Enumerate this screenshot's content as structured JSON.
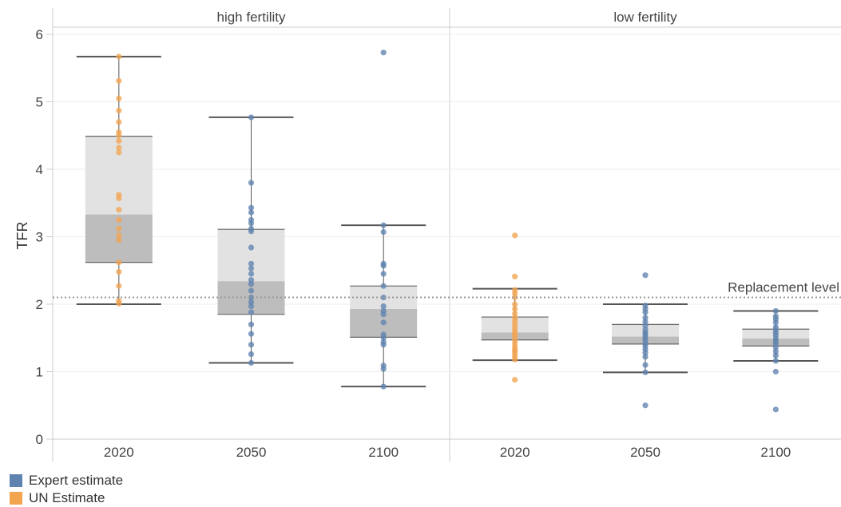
{
  "chart_data": {
    "type": "box",
    "ylabel": "TFR",
    "ylim": [
      0,
      6
    ],
    "yticks": [
      "0",
      "1",
      "2",
      "3",
      "4",
      "5",
      "6"
    ],
    "reference_line": {
      "value": 2.1,
      "label": "Replacement level"
    },
    "panels": [
      {
        "title": "high fertility",
        "boxes": [
          {
            "x": "2020",
            "whisker_low": 2.0,
            "q1": 2.62,
            "median": 3.33,
            "q3": 4.49,
            "whisker_high": 5.67,
            "points": [
              {
                "y": 5.67,
                "series": "UN Estimate"
              },
              {
                "y": 5.31,
                "series": "UN Estimate"
              },
              {
                "y": 5.05,
                "series": "UN Estimate"
              },
              {
                "y": 4.87,
                "series": "UN Estimate"
              },
              {
                "y": 4.7,
                "series": "UN Estimate"
              },
              {
                "y": 4.55,
                "series": "UN Estimate"
              },
              {
                "y": 4.5,
                "series": "UN Estimate"
              },
              {
                "y": 4.42,
                "series": "UN Estimate"
              },
              {
                "y": 4.32,
                "series": "UN Estimate"
              },
              {
                "y": 4.25,
                "series": "UN Estimate"
              },
              {
                "y": 3.62,
                "series": "UN Estimate"
              },
              {
                "y": 3.57,
                "series": "UN Estimate"
              },
              {
                "y": 3.4,
                "series": "UN Estimate"
              },
              {
                "y": 3.25,
                "series": "UN Estimate"
              },
              {
                "y": 3.12,
                "series": "UN Estimate"
              },
              {
                "y": 3.02,
                "series": "UN Estimate"
              },
              {
                "y": 2.95,
                "series": "UN Estimate"
              },
              {
                "y": 2.62,
                "series": "UN Estimate"
              },
              {
                "y": 2.48,
                "series": "UN Estimate"
              },
              {
                "y": 2.27,
                "series": "UN Estimate"
              },
              {
                "y": 2.05,
                "series": "UN Estimate"
              },
              {
                "y": 2.01,
                "series": "UN Estimate"
              }
            ]
          },
          {
            "x": "2050",
            "whisker_low": 1.13,
            "q1": 1.85,
            "median": 2.34,
            "q3": 3.11,
            "whisker_high": 4.77,
            "points": [
              {
                "y": 4.77,
                "series": "Expert estimate"
              },
              {
                "y": 3.8,
                "series": "Expert estimate"
              },
              {
                "y": 3.43,
                "series": "Expert estimate"
              },
              {
                "y": 3.36,
                "series": "Expert estimate"
              },
              {
                "y": 3.25,
                "series": "Expert estimate"
              },
              {
                "y": 3.2,
                "series": "Expert estimate"
              },
              {
                "y": 3.12,
                "series": "Expert estimate"
              },
              {
                "y": 3.08,
                "series": "Expert estimate"
              },
              {
                "y": 2.84,
                "series": "Expert estimate"
              },
              {
                "y": 2.6,
                "series": "Expert estimate"
              },
              {
                "y": 2.53,
                "series": "Expert estimate"
              },
              {
                "y": 2.45,
                "series": "Expert estimate"
              },
              {
                "y": 2.36,
                "series": "Expert estimate"
              },
              {
                "y": 2.3,
                "series": "Expert estimate"
              },
              {
                "y": 2.2,
                "series": "Expert estimate"
              },
              {
                "y": 2.1,
                "series": "Expert estimate"
              },
              {
                "y": 2.03,
                "series": "Expert estimate"
              },
              {
                "y": 1.97,
                "series": "Expert estimate"
              },
              {
                "y": 1.88,
                "series": "Expert estimate"
              },
              {
                "y": 1.7,
                "series": "Expert estimate"
              },
              {
                "y": 1.56,
                "series": "Expert estimate"
              },
              {
                "y": 1.4,
                "series": "Expert estimate"
              },
              {
                "y": 1.26,
                "series": "Expert estimate"
              },
              {
                "y": 1.13,
                "series": "Expert estimate"
              }
            ]
          },
          {
            "x": "2100",
            "whisker_low": 0.78,
            "q1": 1.51,
            "median": 1.93,
            "q3": 2.27,
            "whisker_high": 3.17,
            "points": [
              {
                "y": 5.73,
                "series": "Expert estimate"
              },
              {
                "y": 3.17,
                "series": "Expert estimate"
              },
              {
                "y": 3.07,
                "series": "Expert estimate"
              },
              {
                "y": 2.6,
                "series": "Expert estimate"
              },
              {
                "y": 2.57,
                "series": "Expert estimate"
              },
              {
                "y": 2.45,
                "series": "Expert estimate"
              },
              {
                "y": 2.27,
                "series": "Expert estimate"
              },
              {
                "y": 2.1,
                "series": "Expert estimate"
              },
              {
                "y": 1.97,
                "series": "Expert estimate"
              },
              {
                "y": 1.9,
                "series": "Expert estimate"
              },
              {
                "y": 1.85,
                "series": "Expert estimate"
              },
              {
                "y": 1.73,
                "series": "Expert estimate"
              },
              {
                "y": 1.55,
                "series": "Expert estimate"
              },
              {
                "y": 1.5,
                "series": "Expert estimate"
              },
              {
                "y": 1.44,
                "series": "Expert estimate"
              },
              {
                "y": 1.4,
                "series": "Expert estimate"
              },
              {
                "y": 1.09,
                "series": "Expert estimate"
              },
              {
                "y": 1.04,
                "series": "Expert estimate"
              },
              {
                "y": 0.78,
                "series": "Expert estimate"
              }
            ]
          }
        ]
      },
      {
        "title": "low fertility",
        "boxes": [
          {
            "x": "2020",
            "whisker_low": 1.17,
            "q1": 1.47,
            "median": 1.58,
            "q3": 1.81,
            "whisker_high": 2.23,
            "points": [
              {
                "y": 3.02,
                "series": "UN Estimate"
              },
              {
                "y": 2.41,
                "series": "UN Estimate"
              },
              {
                "y": 2.21,
                "series": "UN Estimate"
              },
              {
                "y": 2.16,
                "series": "UN Estimate"
              },
              {
                "y": 2.1,
                "series": "UN Estimate"
              },
              {
                "y": 2.0,
                "series": "UN Estimate"
              },
              {
                "y": 1.93,
                "series": "UN Estimate"
              },
              {
                "y": 1.86,
                "series": "UN Estimate"
              },
              {
                "y": 1.8,
                "series": "UN Estimate"
              },
              {
                "y": 1.75,
                "series": "UN Estimate"
              },
              {
                "y": 1.7,
                "series": "UN Estimate"
              },
              {
                "y": 1.65,
                "series": "UN Estimate"
              },
              {
                "y": 1.6,
                "series": "UN Estimate"
              },
              {
                "y": 1.56,
                "series": "UN Estimate"
              },
              {
                "y": 1.52,
                "series": "UN Estimate"
              },
              {
                "y": 1.47,
                "series": "UN Estimate"
              },
              {
                "y": 1.42,
                "series": "UN Estimate"
              },
              {
                "y": 1.37,
                "series": "UN Estimate"
              },
              {
                "y": 1.33,
                "series": "UN Estimate"
              },
              {
                "y": 1.3,
                "series": "UN Estimate"
              },
              {
                "y": 1.26,
                "series": "UN Estimate"
              },
              {
                "y": 1.22,
                "series": "UN Estimate"
              },
              {
                "y": 1.18,
                "series": "UN Estimate"
              },
              {
                "y": 0.88,
                "series": "UN Estimate"
              }
            ]
          },
          {
            "x": "2050",
            "whisker_low": 0.99,
            "q1": 1.41,
            "median": 1.52,
            "q3": 1.7,
            "whisker_high": 2.0,
            "points": [
              {
                "y": 2.43,
                "series": "Expert estimate"
              },
              {
                "y": 1.98,
                "series": "Expert estimate"
              },
              {
                "y": 1.93,
                "series": "Expert estimate"
              },
              {
                "y": 1.88,
                "series": "Expert estimate"
              },
              {
                "y": 1.8,
                "series": "Expert estimate"
              },
              {
                "y": 1.74,
                "series": "Expert estimate"
              },
              {
                "y": 1.68,
                "series": "Expert estimate"
              },
              {
                "y": 1.62,
                "series": "Expert estimate"
              },
              {
                "y": 1.58,
                "series": "Expert estimate"
              },
              {
                "y": 1.55,
                "series": "Expert estimate"
              },
              {
                "y": 1.51,
                "series": "Expert estimate"
              },
              {
                "y": 1.47,
                "series": "Expert estimate"
              },
              {
                "y": 1.42,
                "series": "Expert estimate"
              },
              {
                "y": 1.38,
                "series": "Expert estimate"
              },
              {
                "y": 1.33,
                "series": "Expert estimate"
              },
              {
                "y": 1.28,
                "series": "Expert estimate"
              },
              {
                "y": 1.22,
                "series": "Expert estimate"
              },
              {
                "y": 1.1,
                "series": "Expert estimate"
              },
              {
                "y": 0.99,
                "series": "Expert estimate"
              },
              {
                "y": 0.5,
                "series": "Expert estimate"
              }
            ]
          },
          {
            "x": "2100",
            "whisker_low": 1.16,
            "q1": 1.38,
            "median": 1.49,
            "q3": 1.63,
            "whisker_high": 1.9,
            "points": [
              {
                "y": 1.9,
                "series": "Expert estimate"
              },
              {
                "y": 1.82,
                "series": "Expert estimate"
              },
              {
                "y": 1.78,
                "series": "Expert estimate"
              },
              {
                "y": 1.73,
                "series": "Expert estimate"
              },
              {
                "y": 1.66,
                "series": "Expert estimate"
              },
              {
                "y": 1.62,
                "series": "Expert estimate"
              },
              {
                "y": 1.58,
                "series": "Expert estimate"
              },
              {
                "y": 1.54,
                "series": "Expert estimate"
              },
              {
                "y": 1.49,
                "series": "Expert estimate"
              },
              {
                "y": 1.45,
                "series": "Expert estimate"
              },
              {
                "y": 1.41,
                "series": "Expert estimate"
              },
              {
                "y": 1.36,
                "series": "Expert estimate"
              },
              {
                "y": 1.3,
                "series": "Expert estimate"
              },
              {
                "y": 1.24,
                "series": "Expert estimate"
              },
              {
                "y": 1.16,
                "series": "Expert estimate"
              },
              {
                "y": 1.0,
                "series": "Expert estimate"
              },
              {
                "y": 0.44,
                "series": "Expert estimate"
              }
            ]
          }
        ]
      }
    ],
    "legend": [
      {
        "name": "Expert estimate",
        "color": "#5f83ae"
      },
      {
        "name": "UN Estimate",
        "color": "#f2a44f"
      }
    ],
    "legend_position": "bottom-left",
    "colors": {
      "box_upper": "#e2e2e2",
      "box_lower": "#bdbdbd",
      "whisker": "#555555",
      "reference_line": "#999999",
      "grid": "#ececec",
      "axis": "#cccccc"
    }
  }
}
